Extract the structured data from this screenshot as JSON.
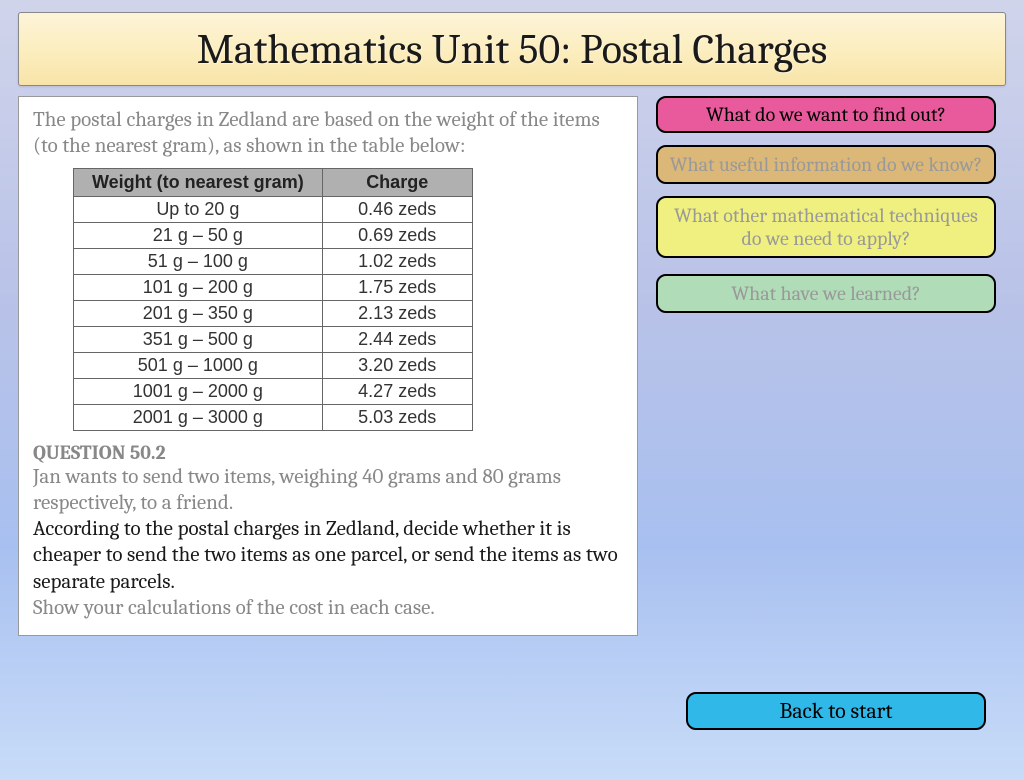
{
  "title": "Mathematics Unit 50: Postal Charges",
  "intro": "The postal charges in Zedland are based on the weight of the items (to the nearest gram), as shown in the table below:",
  "table": {
    "columns": [
      "Weight (to nearest gram)",
      "Charge"
    ],
    "rows": [
      [
        "Up to 20 g",
        "0.46 zeds"
      ],
      [
        "21 g – 50 g",
        "0.69 zeds"
      ],
      [
        "51 g – 100 g",
        "1.02 zeds"
      ],
      [
        "101 g – 200 g",
        "1.75 zeds"
      ],
      [
        "201 g – 350 g",
        "2.13 zeds"
      ],
      [
        "351 g – 500 g",
        "2.44 zeds"
      ],
      [
        "501 g – 1000 g",
        "3.20 zeds"
      ],
      [
        "1001 g – 2000 g",
        "4.27 zeds"
      ],
      [
        "2001 g – 3000 g",
        "5.03 zeds"
      ]
    ],
    "header_bg": "#b0b0b0",
    "border_color": "#666666"
  },
  "question": {
    "label": "QUESTION 50.2",
    "part1": "Jan wants to send two items, weighing 40 grams and 80 grams respectively, to a friend.",
    "part2": "According to the postal charges in Zedland, decide whether it is cheaper to send the two items as one parcel, or send the items as two separate parcels.",
    "part3": "Show your calculations of the cost in each case."
  },
  "buttons": {
    "find_out": "What do we want to find out?",
    "useful_info": "What useful information do we know?",
    "techniques": "What other mathematical techniques do we need to apply?",
    "learned": "What have we learned?",
    "back": "Back to start"
  },
  "colors": {
    "pink": "#e85a9c",
    "tan": "#dcb878",
    "yellow": "#f0f080",
    "green": "#b0dcb8",
    "blue": "#30b8e8"
  }
}
